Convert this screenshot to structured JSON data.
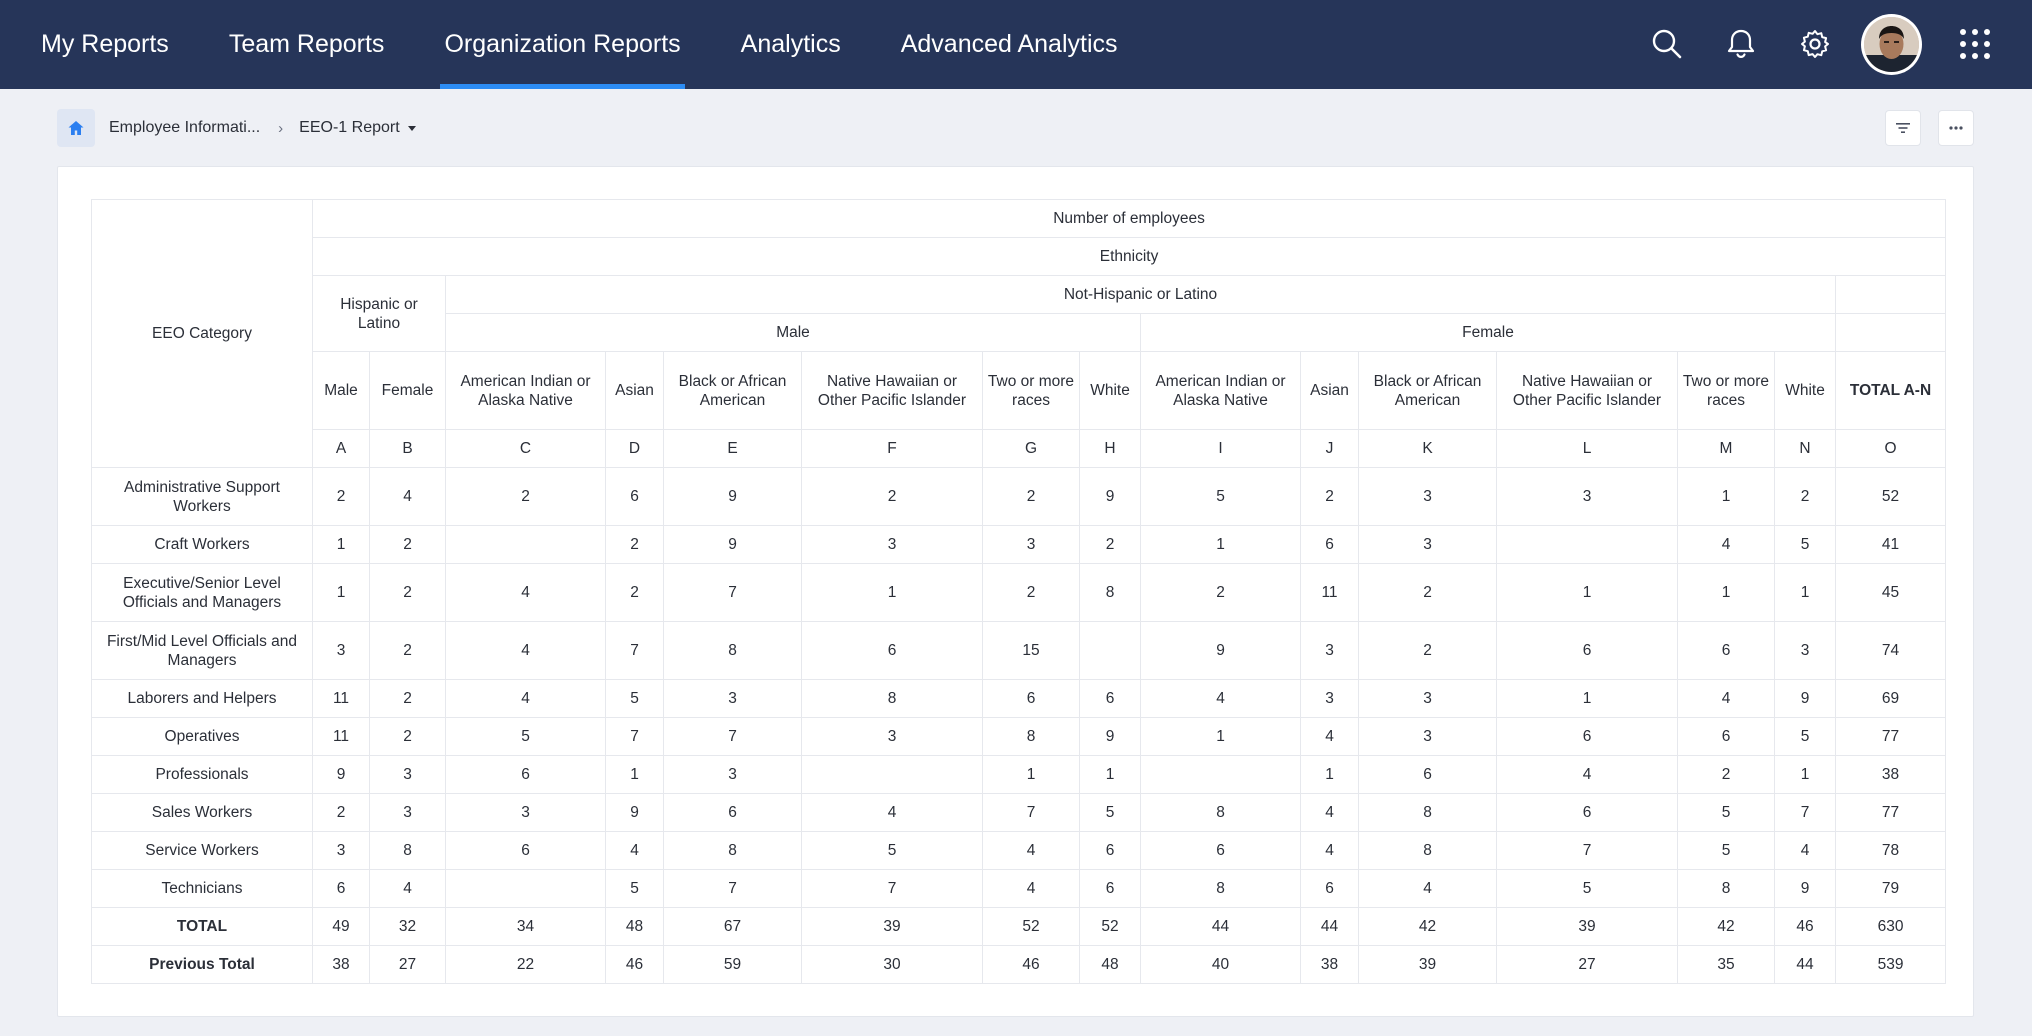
{
  "nav": {
    "tabs": [
      {
        "label": "My Reports"
      },
      {
        "label": "Team Reports"
      },
      {
        "label": "Organization Reports",
        "active": true
      },
      {
        "label": "Analytics"
      },
      {
        "label": "Advanced Analytics"
      }
    ],
    "icons": [
      "search-icon",
      "bell-icon",
      "gear-icon",
      "avatar",
      "apps-grid-icon"
    ]
  },
  "breadcrumb": {
    "home_icon": "home-icon",
    "parent": "Employee Informati...",
    "separator": "›",
    "current": "EEO-1 Report"
  },
  "toolbar": {
    "filter_icon": "filter-icon",
    "more_icon": "more-icon"
  },
  "colors": {
    "topbar": "#263559",
    "accent": "#2c8cf4",
    "background": "#eef0f5"
  },
  "report": {
    "header": {
      "category_label": "EEO Category",
      "number_of_employees": "Number of employees",
      "ethnicity": "Ethnicity",
      "hispanic": "Hispanic or Latino",
      "not_hispanic": "Not-Hispanic or Latino",
      "male": "Male",
      "female": "Female",
      "columns": [
        "Male",
        "Female",
        "American Indian or Alaska Native",
        "Asian",
        "Black or African American",
        "Native Hawaiian or Other Pacific Islander",
        "Two or more races",
        "White",
        "American Indian or Alaska Native",
        "Asian",
        "Black or African American",
        "Native Hawaiian or Other Pacific Islander",
        "Two or more races",
        "White",
        "TOTAL A-N"
      ],
      "letters": [
        "A",
        "B",
        "C",
        "D",
        "E",
        "F",
        "G",
        "H",
        "I",
        "J",
        "K",
        "L",
        "M",
        "N",
        "O"
      ]
    },
    "rows": [
      {
        "category": "Administrative Support Workers",
        "values": [
          "2",
          "4",
          "2",
          "6",
          "9",
          "2",
          "2",
          "9",
          "5",
          "2",
          "3",
          "3",
          "1",
          "2",
          "52"
        ]
      },
      {
        "category": "Craft Workers",
        "values": [
          "1",
          "2",
          "",
          "2",
          "9",
          "3",
          "3",
          "2",
          "1",
          "6",
          "3",
          "",
          "4",
          "5",
          "41"
        ]
      },
      {
        "category": "Executive/Senior Level Officials and Managers",
        "values": [
          "1",
          "2",
          "4",
          "2",
          "7",
          "1",
          "2",
          "8",
          "2",
          "11",
          "2",
          "1",
          "1",
          "1",
          "45"
        ]
      },
      {
        "category": "First/Mid Level Officials and Managers",
        "values": [
          "3",
          "2",
          "4",
          "7",
          "8",
          "6",
          "15",
          "",
          "9",
          "3",
          "2",
          "6",
          "6",
          "3",
          "74"
        ]
      },
      {
        "category": "Laborers and Helpers",
        "values": [
          "11",
          "2",
          "4",
          "5",
          "3",
          "8",
          "6",
          "6",
          "4",
          "3",
          "3",
          "1",
          "4",
          "9",
          "69"
        ]
      },
      {
        "category": "Operatives",
        "values": [
          "11",
          "2",
          "5",
          "7",
          "7",
          "3",
          "8",
          "9",
          "1",
          "4",
          "3",
          "6",
          "6",
          "5",
          "77"
        ]
      },
      {
        "category": "Professionals",
        "values": [
          "9",
          "3",
          "6",
          "1",
          "3",
          "",
          "1",
          "1",
          "",
          "1",
          "6",
          "4",
          "2",
          "1",
          "38"
        ]
      },
      {
        "category": "Sales Workers",
        "values": [
          "2",
          "3",
          "3",
          "9",
          "6",
          "4",
          "7",
          "5",
          "8",
          "4",
          "8",
          "6",
          "5",
          "7",
          "77"
        ]
      },
      {
        "category": "Service Workers",
        "values": [
          "3",
          "8",
          "6",
          "4",
          "8",
          "5",
          "4",
          "6",
          "6",
          "4",
          "8",
          "7",
          "5",
          "4",
          "78"
        ]
      },
      {
        "category": "Technicians",
        "values": [
          "6",
          "4",
          "",
          "5",
          "7",
          "7",
          "4",
          "6",
          "8",
          "6",
          "4",
          "5",
          "8",
          "9",
          "79"
        ]
      }
    ],
    "total": {
      "category": "TOTAL",
      "values": [
        "49",
        "32",
        "34",
        "48",
        "67",
        "39",
        "52",
        "52",
        "44",
        "44",
        "42",
        "39",
        "42",
        "46",
        "630"
      ]
    },
    "previous_total": {
      "category": "Previous Total",
      "values": [
        "38",
        "27",
        "22",
        "46",
        "59",
        "30",
        "46",
        "48",
        "40",
        "38",
        "39",
        "27",
        "35",
        "44",
        "539"
      ]
    }
  }
}
